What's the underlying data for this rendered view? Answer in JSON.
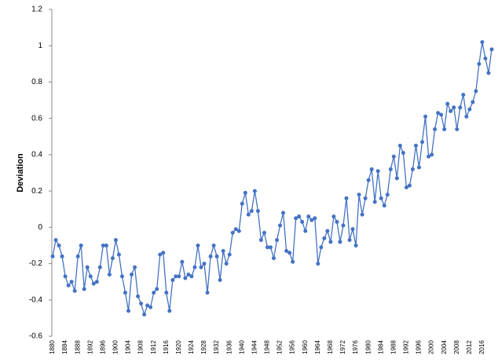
{
  "chart_data": {
    "type": "line",
    "y_label": "Deviation",
    "color": "#4472c4",
    "x": [
      1880,
      1881,
      1882,
      1883,
      1884,
      1885,
      1886,
      1887,
      1888,
      1889,
      1890,
      1891,
      1892,
      1893,
      1894,
      1895,
      1896,
      1897,
      1898,
      1899,
      1900,
      1901,
      1902,
      1903,
      1904,
      1905,
      1906,
      1907,
      1908,
      1909,
      1910,
      1911,
      1912,
      1913,
      1914,
      1915,
      1916,
      1917,
      1918,
      1919,
      1920,
      1921,
      1922,
      1923,
      1924,
      1925,
      1926,
      1927,
      1928,
      1929,
      1930,
      1931,
      1932,
      1933,
      1934,
      1935,
      1936,
      1937,
      1938,
      1939,
      1940,
      1941,
      1942,
      1943,
      1944,
      1945,
      1946,
      1947,
      1948,
      1949,
      1950,
      1951,
      1952,
      1953,
      1954,
      1955,
      1956,
      1957,
      1958,
      1959,
      1960,
      1961,
      1962,
      1963,
      1964,
      1965,
      1966,
      1967,
      1968,
      1969,
      1970,
      1971,
      1972,
      1973,
      1974,
      1975,
      1976,
      1977,
      1978,
      1979,
      1980,
      1981,
      1982,
      1983,
      1984,
      1985,
      1986,
      1987,
      1988,
      1989,
      1990,
      1991,
      1992,
      1993,
      1994,
      1995,
      1996,
      1997,
      1998,
      1999,
      2000,
      2001,
      2002,
      2003,
      2004,
      2005,
      2006,
      2007,
      2008,
      2009,
      2010,
      2011,
      2012,
      2013,
      2014,
      2015,
      2016,
      2017,
      2018,
      2019
    ],
    "values": [
      -0.16,
      -0.07,
      -0.1,
      -0.16,
      -0.27,
      -0.32,
      -0.3,
      -0.35,
      -0.16,
      -0.1,
      -0.34,
      -0.22,
      -0.27,
      -0.31,
      -0.3,
      -0.22,
      -0.1,
      -0.1,
      -0.26,
      -0.17,
      -0.07,
      -0.15,
      -0.27,
      -0.36,
      -0.46,
      -0.26,
      -0.22,
      -0.38,
      -0.42,
      -0.48,
      -0.43,
      -0.44,
      -0.36,
      -0.34,
      -0.15,
      -0.14,
      -0.36,
      -0.46,
      -0.29,
      -0.27,
      -0.27,
      -0.19,
      -0.28,
      -0.26,
      -0.27,
      -0.22,
      -0.1,
      -0.22,
      -0.2,
      -0.36,
      -0.16,
      -0.1,
      -0.16,
      -0.29,
      -0.13,
      -0.2,
      -0.15,
      -0.03,
      -0.01,
      -0.02,
      0.13,
      0.19,
      0.07,
      0.09,
      0.2,
      0.09,
      -0.07,
      -0.03,
      -0.11,
      -0.11,
      -0.17,
      -0.07,
      0.01,
      0.08,
      -0.13,
      -0.14,
      -0.19,
      0.05,
      0.06,
      0.03,
      -0.02,
      0.06,
      0.04,
      0.05,
      -0.2,
      -0.11,
      -0.06,
      -0.02,
      -0.08,
      0.06,
      0.03,
      -0.08,
      0.01,
      0.16,
      -0.07,
      -0.01,
      -0.1,
      0.18,
      0.07,
      0.16,
      0.26,
      0.32,
      0.14,
      0.31,
      0.16,
      0.12,
      0.18,
      0.32,
      0.39,
      0.27,
      0.45,
      0.41,
      0.22,
      0.23,
      0.32,
      0.45,
      0.33,
      0.47,
      0.61,
      0.39,
      0.4,
      0.54,
      0.63,
      0.62,
      0.54,
      0.68,
      0.64,
      0.66,
      0.54,
      0.66,
      0.73,
      0.61,
      0.65,
      0.69,
      0.75,
      0.9,
      1.02,
      0.93,
      0.85,
      0.98
    ],
    "xlim": [
      1880,
      2019
    ],
    "xticks": [
      1880,
      1884,
      1888,
      1892,
      1896,
      1900,
      1904,
      1908,
      1912,
      1916,
      1920,
      1924,
      1928,
      1932,
      1936,
      1940,
      1944,
      1948,
      1952,
      1956,
      1960,
      1964,
      1968,
      1972,
      1976,
      1980,
      1984,
      1988,
      1992,
      1996,
      2000,
      2004,
      2008,
      2012,
      2016
    ],
    "ylim": [
      -0.6,
      1.2
    ],
    "yticks": [
      -0.6,
      -0.4,
      -0.2,
      0,
      0.2,
      0.4,
      0.6,
      0.8,
      1,
      1.2
    ]
  }
}
